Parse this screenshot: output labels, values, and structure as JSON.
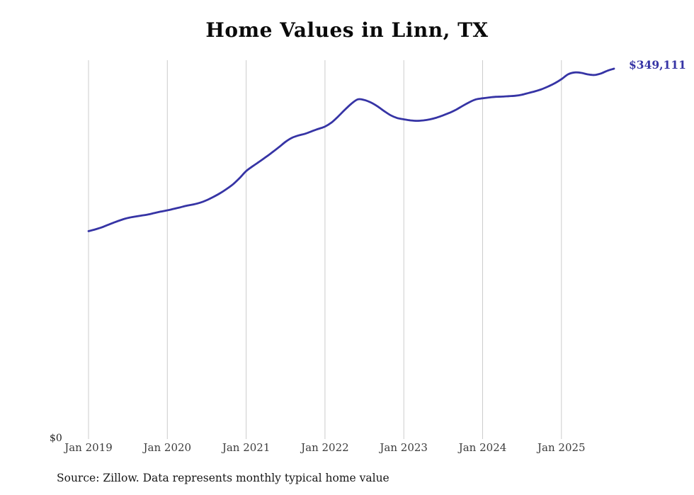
{
  "title": "Home Values in Linn, TX",
  "y_zero_label": "$0",
  "latest_value_label": "$349,111",
  "source_note": "Source: Zillow. Data represents monthly typical home value",
  "chart_data": {
    "type": "line",
    "title": "Home Values in Linn, TX",
    "series_name": "Typical home value (monthly)",
    "legend": "none",
    "grid": "vertical-only",
    "line_color": "#3634a5",
    "gridline_color": "#cccccc",
    "xlabel": "",
    "ylabel": "",
    "ylim": [
      0,
      357000
    ],
    "y_tick_labels": [
      "$0"
    ],
    "latest_value": 349111,
    "latest_value_label": "$349,111",
    "x_tick_labels": [
      "Jan 2019",
      "Jan 2020",
      "Jan 2021",
      "Jan 2022",
      "Jan 2023",
      "Jan 2024",
      "Jan 2025"
    ],
    "x": [
      "2019-01",
      "2019-02",
      "2019-03",
      "2019-04",
      "2019-05",
      "2019-06",
      "2019-07",
      "2019-08",
      "2019-09",
      "2019-10",
      "2019-11",
      "2019-12",
      "2020-01",
      "2020-02",
      "2020-03",
      "2020-04",
      "2020-05",
      "2020-06",
      "2020-07",
      "2020-08",
      "2020-09",
      "2020-10",
      "2020-11",
      "2020-12",
      "2021-01",
      "2021-02",
      "2021-03",
      "2021-04",
      "2021-05",
      "2021-06",
      "2021-07",
      "2021-08",
      "2021-09",
      "2021-10",
      "2021-11",
      "2021-12",
      "2022-01",
      "2022-02",
      "2022-03",
      "2022-04",
      "2022-05",
      "2022-06",
      "2022-07",
      "2022-08",
      "2022-09",
      "2022-10",
      "2022-11",
      "2022-12",
      "2023-01",
      "2023-02",
      "2023-03",
      "2023-04",
      "2023-05",
      "2023-06",
      "2023-07",
      "2023-08",
      "2023-09",
      "2023-10",
      "2023-11",
      "2023-12",
      "2024-01",
      "2024-02",
      "2024-03",
      "2024-04",
      "2024-05",
      "2024-06",
      "2024-07",
      "2024-08",
      "2024-09",
      "2024-10",
      "2024-11",
      "2024-12",
      "2025-01",
      "2025-02",
      "2025-03",
      "2025-04",
      "2025-05",
      "2025-06",
      "2025-07",
      "2025-08",
      "2025-09"
    ],
    "values": [
      196000,
      197600,
      199500,
      202000,
      204400,
      206600,
      208400,
      209600,
      210600,
      211600,
      213000,
      214400,
      215600,
      217000,
      218500,
      220000,
      221200,
      222800,
      225200,
      228200,
      231600,
      235600,
      240200,
      246000,
      252600,
      257200,
      261400,
      265800,
      270400,
      275200,
      280200,
      284000,
      286200,
      287800,
      290200,
      292400,
      294600,
      298400,
      304000,
      310200,
      316000,
      320200,
      319600,
      317200,
      313600,
      309200,
      305200,
      302600,
      301400,
      300400,
      300000,
      300400,
      301400,
      303000,
      305200,
      307600,
      310600,
      314200,
      317600,
      320200,
      321200,
      322000,
      322600,
      322800,
      323200,
      323600,
      324600,
      326200,
      327800,
      329800,
      332400,
      335400,
      339200,
      343800,
      345600,
      345200,
      343800,
      343200,
      344600,
      347200,
      349111
    ]
  }
}
